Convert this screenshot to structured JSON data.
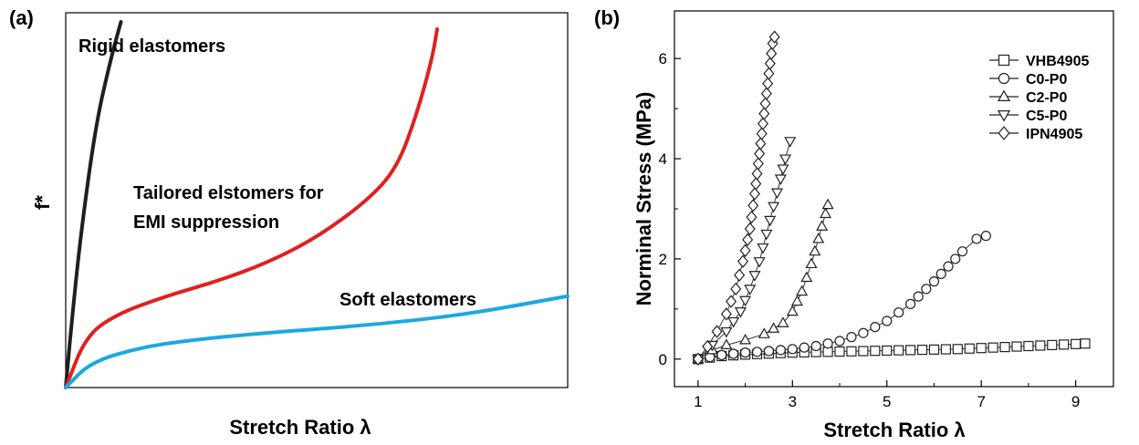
{
  "chart_data": [
    {
      "panel": "(a)",
      "type": "line",
      "xlabel": "Stretch Ratio λ",
      "ylabel": "f*",
      "axes": "no ticks, boxed plot area",
      "annotations": [
        "Rigid elastomers",
        "Tailored elstomers for",
        "EMI suppression",
        "Soft elastomers"
      ],
      "series": [
        {
          "name": "Rigid elastomers",
          "color": "#1f1f1f",
          "x": [
            0,
            0.012,
            0.03,
            0.06,
            0.09,
            0.11
          ],
          "y": [
            0,
            0.18,
            0.42,
            0.72,
            0.9,
            1.0
          ]
        },
        {
          "name": "Tailored elstomers for EMI suppression",
          "color": "#e02020",
          "x": [
            0,
            0.04,
            0.1,
            0.2,
            0.3,
            0.4,
            0.5,
            0.6,
            0.66,
            0.7,
            0.73,
            0.74
          ],
          "y": [
            0,
            0.14,
            0.2,
            0.25,
            0.29,
            0.34,
            0.41,
            0.51,
            0.6,
            0.75,
            0.9,
            0.98
          ]
        },
        {
          "name": "Soft elastomers",
          "color": "#1ca8e0",
          "x": [
            0,
            0.05,
            0.15,
            0.25,
            0.4,
            0.6,
            0.8,
            1.0
          ],
          "y": [
            0,
            0.07,
            0.11,
            0.13,
            0.15,
            0.17,
            0.2,
            0.25
          ]
        }
      ]
    },
    {
      "panel": "(b)",
      "type": "scatter",
      "xlabel": "Stretch Ratio λ",
      "ylabel": "Norminal Stress (MPa)",
      "xlim": [
        0.5,
        9.8
      ],
      "ylim": [
        -0.55,
        6.95
      ],
      "xticks": [
        "1",
        "3",
        "5",
        "7",
        "9"
      ],
      "yticks": [
        "0",
        "2",
        "4",
        "6"
      ],
      "legend": "top-right",
      "series": [
        {
          "name": "VHB4905",
          "marker": "square",
          "x": [
            1.0,
            1.5,
            2.0,
            2.5,
            3.0,
            3.5,
            4.0,
            4.5,
            5.0,
            5.5,
            6.0,
            6.5,
            7.0,
            7.5,
            8.0,
            8.5,
            9.0,
            9.2
          ],
          "y": [
            0.0,
            0.06,
            0.09,
            0.11,
            0.13,
            0.14,
            0.15,
            0.16,
            0.17,
            0.18,
            0.19,
            0.2,
            0.22,
            0.24,
            0.26,
            0.28,
            0.3,
            0.31
          ]
        },
        {
          "name": "C0-P0",
          "marker": "circle",
          "x": [
            1.0,
            1.5,
            2.0,
            2.5,
            3.0,
            3.5,
            4.0,
            4.5,
            5.0,
            5.5,
            6.0,
            6.3,
            6.6,
            6.9,
            7.1
          ],
          "y": [
            0.0,
            0.08,
            0.13,
            0.16,
            0.2,
            0.26,
            0.36,
            0.52,
            0.76,
            1.1,
            1.55,
            1.85,
            2.15,
            2.4,
            2.46
          ]
        },
        {
          "name": "C2-P0",
          "marker": "triangle-up",
          "x": [
            1.0,
            1.3,
            1.6,
            2.0,
            2.4,
            2.8,
            3.0,
            3.2,
            3.4,
            3.55,
            3.7,
            3.75
          ],
          "y": [
            0.0,
            0.18,
            0.28,
            0.38,
            0.5,
            0.72,
            0.95,
            1.35,
            1.9,
            2.4,
            2.9,
            3.08
          ]
        },
        {
          "name": "C5-P0",
          "marker": "triangle-down",
          "x": [
            1.0,
            1.3,
            1.6,
            1.9,
            2.1,
            2.3,
            2.45,
            2.6,
            2.75,
            2.85,
            2.95
          ],
          "y": [
            0.0,
            0.28,
            0.55,
            0.95,
            1.4,
            1.95,
            2.5,
            3.05,
            3.6,
            4.0,
            4.35
          ]
        },
        {
          "name": "IPN4905",
          "marker": "diamond",
          "x": [
            1.0,
            1.2,
            1.4,
            1.6,
            1.8,
            1.95,
            2.1,
            2.2,
            2.3,
            2.4,
            2.5,
            2.58,
            2.62
          ],
          "y": [
            0.0,
            0.25,
            0.55,
            0.9,
            1.4,
            1.95,
            2.6,
            3.3,
            4.1,
            4.9,
            5.7,
            6.3,
            6.43
          ]
        }
      ]
    }
  ]
}
